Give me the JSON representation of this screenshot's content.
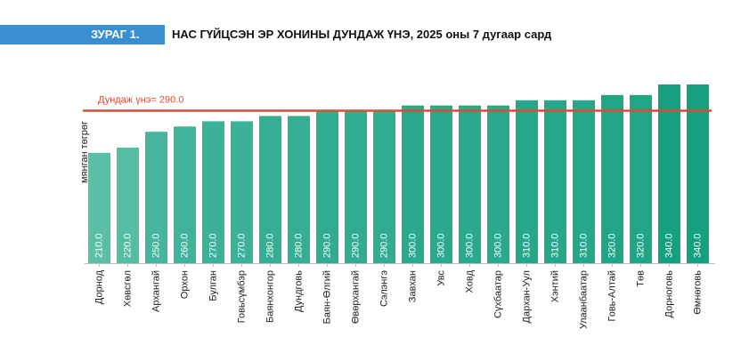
{
  "header": {
    "badge": "ЗУРАГ 1.",
    "title": "НАС ГҮЙЦСЭН ЭР ХОНИНЫ ДУНДАЖ ҮНЭ, 2025 оны 7 дугаар сард"
  },
  "chart_data": {
    "type": "bar",
    "title": "НАС ГҮЙЦСЭН ЭР ХОНИНЫ ДУНДАЖ ҮНЭ, 2025 оны 7 дугаар сард",
    "ylabel": "мянган төгрөг",
    "xlabel": "",
    "categories": [
      "Дорнод",
      "Хөвсгөл",
      "Архангай",
      "Орхон",
      "Булган",
      "Говьсүмбэр",
      "Баянхонгор",
      "Дундговь",
      "Баян-Өлгий",
      "Өвөрхангай",
      "Сэлэнгэ",
      "Завхан",
      "Увс",
      "Ховд",
      "Сүхбаатар",
      "Дархан-Уул",
      "Хэнтий",
      "Улаанбаатар",
      "Говь-Алтай",
      "Төв",
      "Дорноговь",
      "Өмнөговь"
    ],
    "values": [
      210.0,
      220.0,
      250.0,
      260.0,
      270.0,
      270.0,
      280.0,
      280.0,
      290.0,
      290.0,
      290.0,
      300.0,
      300.0,
      300.0,
      300.0,
      310.0,
      310.0,
      310.0,
      320.0,
      320.0,
      340.0,
      340.0
    ],
    "value_labels": [
      "210.0",
      "220.0",
      "250.0",
      "260.0",
      "270.0",
      "270.0",
      "280.0",
      "280.0",
      "290.0",
      "290.0",
      "290.0",
      "300.0",
      "300.0",
      "300.0",
      "300.0",
      "310.0",
      "310.0",
      "310.0",
      "320.0",
      "320.0",
      "340.0",
      "340.0"
    ],
    "average": {
      "value": 290.0,
      "label": "Дундаж үнэ= 290.0",
      "color": "#e04a33"
    },
    "ylim": [
      0,
      350
    ],
    "colors": {
      "start": "#5bbfa8",
      "end": "#16a07e"
    },
    "grid": false
  }
}
